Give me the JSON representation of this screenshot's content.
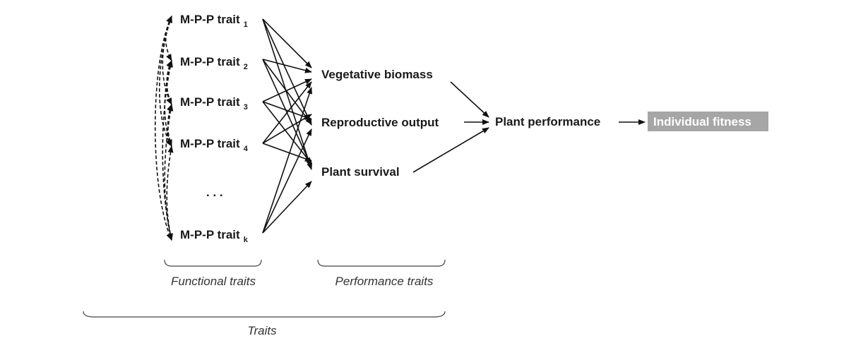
{
  "functional_traits": [
    {
      "label": "M-P-P trait",
      "subscript": "1"
    },
    {
      "label": "M-P-P trait",
      "subscript": "2"
    },
    {
      "label": "M-P-P trait",
      "subscript": "3"
    },
    {
      "label": "M-P-P trait",
      "subscript": "4"
    },
    {
      "label": "M-P-P trait",
      "subscript": "k"
    }
  ],
  "ellipsis": ". . .",
  "performance_traits": [
    "Vegetative biomass",
    "Reproductive output",
    "Plant survival"
  ],
  "plant_performance": "Plant performance",
  "individual_fitness": "Individual fitness",
  "captions": {
    "functional": "Functional traits",
    "performance": "Performance traits",
    "traits": "Traits"
  },
  "colors": {
    "fitness_box": "#a6a6a6",
    "edge": "#111111"
  }
}
